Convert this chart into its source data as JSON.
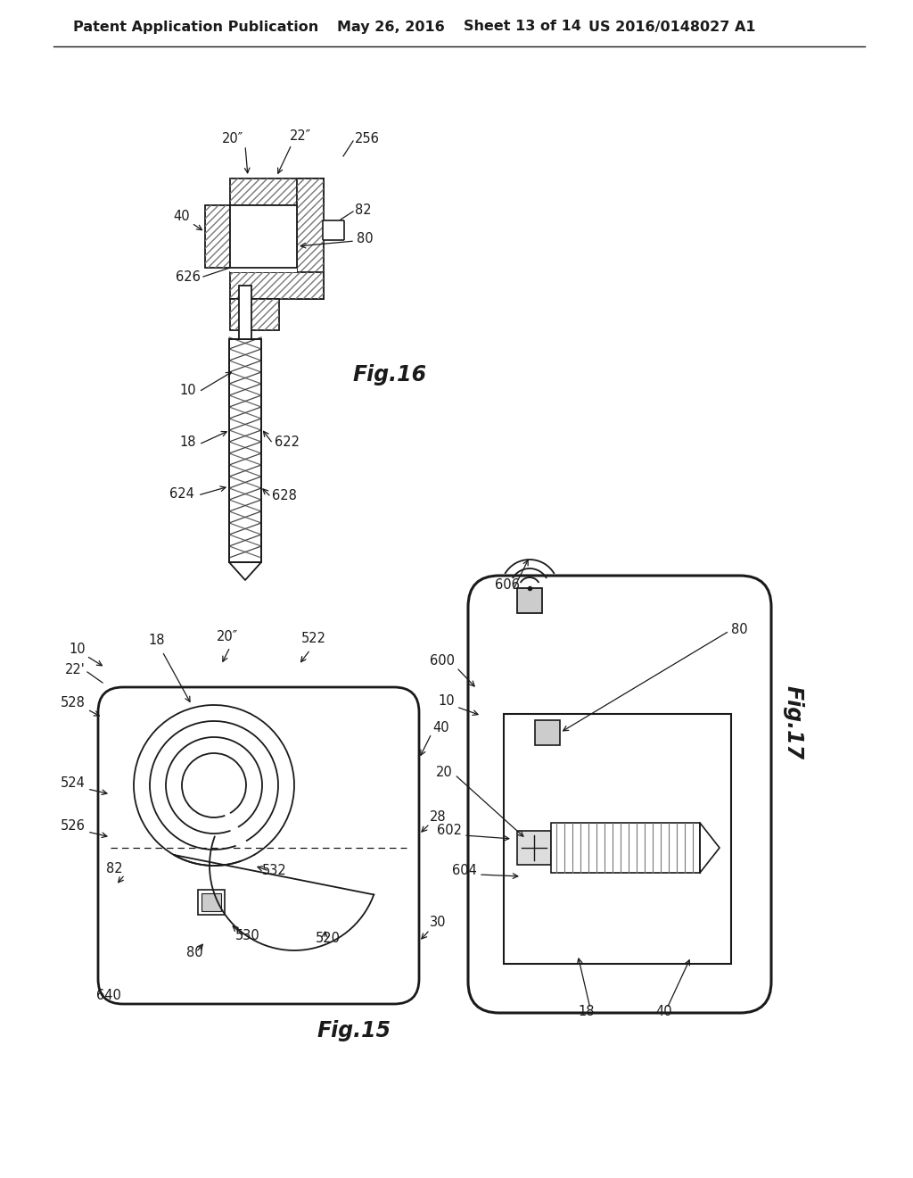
{
  "bg_color": "#ffffff",
  "header_text": "Patent Application Publication",
  "header_date": "May 26, 2016",
  "header_sheet": "Sheet 13 of 14",
  "header_patent": "US 2016/0148027 A1",
  "fig15_label": "Fig.15",
  "fig16_label": "Fig.16",
  "fig17_label": "Fig.17",
  "line_color": "#1a1a1a",
  "label_fontsize": 10.5,
  "header_fontsize": 11.5
}
